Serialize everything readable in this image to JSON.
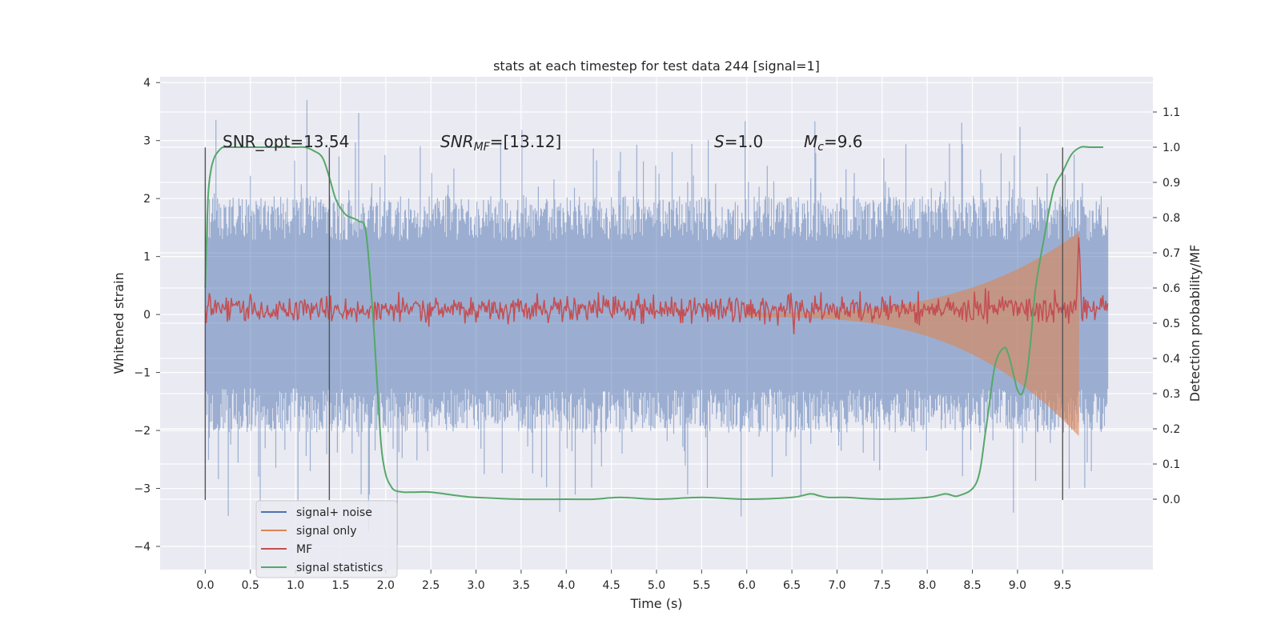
{
  "chart_data": {
    "type": "line",
    "title": "stats at each timestep for test data 244 [signal=1]",
    "xlabel": "Time (s)",
    "ylabel": "Whitened strain",
    "ylabel_right": "Detection probability/MF",
    "xlim": [
      -0.5,
      10.5
    ],
    "ylim": [
      -4.4,
      4.1
    ],
    "ylim_right": [
      -0.2,
      1.2
    ],
    "x_ticks": [
      0.0,
      0.5,
      1.0,
      1.5,
      2.0,
      2.5,
      3.0,
      3.5,
      4.0,
      4.5,
      5.0,
      5.5,
      6.0,
      6.5,
      7.0,
      7.5,
      8.0,
      8.5,
      9.0,
      9.5
    ],
    "x_tick_labels": [
      "0.0",
      "0.5",
      "1.0",
      "1.5",
      "2.0",
      "2.5",
      "3.0",
      "3.5",
      "4.0",
      "4.5",
      "5.0",
      "5.5",
      "6.0",
      "6.5",
      "7.0",
      "7.5",
      "8.0",
      "8.5",
      "9.0",
      "9.5"
    ],
    "y_ticks": [
      -4,
      -3,
      -2,
      -1,
      0,
      1,
      2,
      3,
      4
    ],
    "y_tick_labels": [
      "−4",
      "−3",
      "−2",
      "−1",
      "0",
      "1",
      "2",
      "3",
      "4"
    ],
    "y_right_ticks": [
      0.0,
      0.1,
      0.2,
      0.3,
      0.4,
      0.5,
      0.6,
      0.7,
      0.8,
      0.9,
      1.0,
      1.1
    ],
    "y_right_tick_labels": [
      "0.0",
      "0.1",
      "0.2",
      "0.3",
      "0.4",
      "0.5",
      "0.6",
      "0.7",
      "0.8",
      "0.9",
      "1.0",
      "1.1"
    ],
    "grid": true,
    "legend_position": "bottom-left",
    "annotations": {
      "snr_opt": "SNR_opt=13.54",
      "snr_mf_base": "SNR",
      "snr_mf_sub": "MF",
      "snr_mf_rest": "=[13.12]",
      "s_base": "S",
      "s_rest": "=1.0",
      "mc_base": "M",
      "mc_sub": "c",
      "mc_rest": "=9.6"
    },
    "vertical_lines_x": [
      0.0,
      1.375,
      9.5
    ],
    "series": [
      {
        "name": "signal+ noise",
        "color": "#4c72b0",
        "description_x_range": [
          0.0,
          10.0
        ],
        "approx_envelope": {
          "typical_abs": 1.7,
          "peak_max": 3.7,
          "peak_min": -4.05
        }
      },
      {
        "name": "signal only",
        "color": "#dd8452",
        "chirp": {
          "t_start": 6.0,
          "t_merge": 9.68,
          "amp_start": 0.03,
          "amp_peak_pos": 1.42,
          "amp_peak_neg": -2.1
        }
      },
      {
        "name": "MF",
        "color": "#c44e52",
        "right_axis": true,
        "baseline": 0.54,
        "noise_amp": 0.02,
        "peak": {
          "x": 9.68,
          "y": 0.76
        }
      },
      {
        "name": "signal statistics",
        "color": "#55a868",
        "right_axis": true,
        "x": [
          0.0,
          0.03,
          0.06,
          0.1,
          0.15,
          0.2,
          0.3,
          0.5,
          0.8,
          1.0,
          1.1,
          1.2,
          1.3,
          1.38,
          1.45,
          1.55,
          1.62,
          1.7,
          1.78,
          1.85,
          1.9,
          1.95,
          2.0,
          2.05,
          2.1,
          2.2,
          2.3,
          2.5,
          2.8,
          3.0,
          3.5,
          4.0,
          4.3,
          4.6,
          5.0,
          5.5,
          6.0,
          6.5,
          6.7,
          6.8,
          6.9,
          7.1,
          7.5,
          8.0,
          8.2,
          8.35,
          8.55,
          8.65,
          8.75,
          8.85,
          8.9,
          8.95,
          9.0,
          9.05,
          9.1,
          9.15,
          9.2,
          9.3,
          9.4,
          9.5,
          9.6,
          9.7,
          9.8,
          9.95
        ],
        "y": [
          0.6,
          0.85,
          0.93,
          0.97,
          0.99,
          1.0,
          1.0,
          1.0,
          1.0,
          1.0,
          1.0,
          0.99,
          0.97,
          0.91,
          0.85,
          0.81,
          0.8,
          0.79,
          0.76,
          0.55,
          0.35,
          0.15,
          0.07,
          0.04,
          0.025,
          0.02,
          0.02,
          0.02,
          0.01,
          0.005,
          0.0,
          0.0,
          0.0,
          0.005,
          0.0,
          0.005,
          0.0,
          0.005,
          0.015,
          0.01,
          0.005,
          0.005,
          0.0,
          0.005,
          0.015,
          0.01,
          0.05,
          0.2,
          0.38,
          0.43,
          0.41,
          0.36,
          0.31,
          0.3,
          0.35,
          0.46,
          0.6,
          0.75,
          0.88,
          0.93,
          0.98,
          1.0,
          1.0,
          1.0
        ]
      }
    ]
  }
}
